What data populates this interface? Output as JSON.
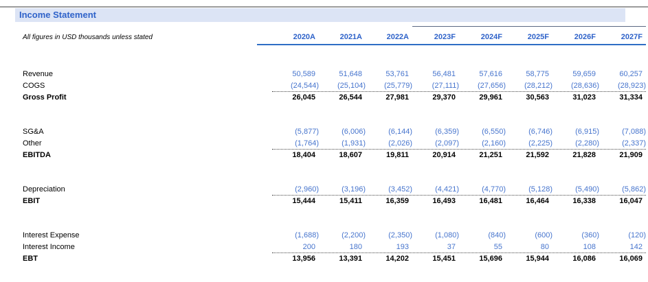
{
  "page": {
    "title": "Income Statement",
    "note": "All figures in USD thousands unless stated"
  },
  "table": {
    "columns": [
      "2020A",
      "2021A",
      "2022A",
      "2023F",
      "2024F",
      "2025F",
      "2026F",
      "2027F"
    ],
    "forecast_start_column": "2023F",
    "rows": [
      {
        "label": "Revenue",
        "emphasis": "blue",
        "dotted_bottom": false,
        "gap_before": false,
        "values": [
          "50,589",
          "51,648",
          "53,761",
          "56,481",
          "57,616",
          "58,775",
          "59,659",
          "60,257"
        ]
      },
      {
        "label": "COGS",
        "emphasis": "blue",
        "dotted_bottom": true,
        "gap_before": false,
        "values": [
          "(24,544)",
          "(25,104)",
          "(25,779)",
          "(27,111)",
          "(27,656)",
          "(28,212)",
          "(28,636)",
          "(28,923)"
        ]
      },
      {
        "label": "Gross Profit",
        "emphasis": "total",
        "dotted_bottom": false,
        "gap_before": false,
        "values": [
          "26,045",
          "26,544",
          "27,981",
          "29,370",
          "29,961",
          "30,563",
          "31,023",
          "31,334"
        ]
      },
      {
        "label": "SG&A",
        "emphasis": "blue",
        "dotted_bottom": false,
        "gap_before": true,
        "values": [
          "(5,877)",
          "(6,006)",
          "(6,144)",
          "(6,359)",
          "(6,550)",
          "(6,746)",
          "(6,915)",
          "(7,088)"
        ]
      },
      {
        "label": "Other",
        "emphasis": "blue",
        "dotted_bottom": true,
        "gap_before": false,
        "values": [
          "(1,764)",
          "(1,931)",
          "(2,026)",
          "(2,097)",
          "(2,160)",
          "(2,225)",
          "(2,280)",
          "(2,337)"
        ]
      },
      {
        "label": "EBITDA",
        "emphasis": "total",
        "dotted_bottom": false,
        "gap_before": false,
        "values": [
          "18,404",
          "18,607",
          "19,811",
          "20,914",
          "21,251",
          "21,592",
          "21,828",
          "21,909"
        ]
      },
      {
        "label": "Depreciation",
        "emphasis": "blue",
        "dotted_bottom": true,
        "gap_before": true,
        "values": [
          "(2,960)",
          "(3,196)",
          "(3,452)",
          "(4,421)",
          "(4,770)",
          "(5,128)",
          "(5,490)",
          "(5,862)"
        ]
      },
      {
        "label": "EBIT",
        "emphasis": "total",
        "dotted_bottom": false,
        "gap_before": false,
        "values": [
          "15,444",
          "15,411",
          "16,359",
          "16,493",
          "16,481",
          "16,464",
          "16,338",
          "16,047"
        ]
      },
      {
        "label": "Interest Expense",
        "emphasis": "blue",
        "dotted_bottom": false,
        "gap_before": true,
        "values": [
          "(1,688)",
          "(2,200)",
          "(2,350)",
          "(1,080)",
          "(840)",
          "(600)",
          "(360)",
          "(120)"
        ]
      },
      {
        "label": "Interest Income",
        "emphasis": "blue",
        "dotted_bottom": true,
        "gap_before": false,
        "values": [
          "200",
          "180",
          "193",
          "37",
          "55",
          "80",
          "108",
          "142"
        ]
      },
      {
        "label": "EBT",
        "emphasis": "total",
        "dotted_bottom": false,
        "gap_before": false,
        "values": [
          "13,956",
          "13,391",
          "14,202",
          "15,451",
          "15,696",
          "15,944",
          "16,086",
          "16,069"
        ]
      }
    ]
  },
  "colors": {
    "accent_blue": "#2e62c9",
    "number_blue": "#4674cd",
    "title_band_bg": "#dce4f5",
    "header_underline_blue": "#2e6dc5",
    "forecast_overline_gray": "#5a6782",
    "top_rule_gray": "#9b9b9b",
    "dotted_border": "#444444"
  }
}
